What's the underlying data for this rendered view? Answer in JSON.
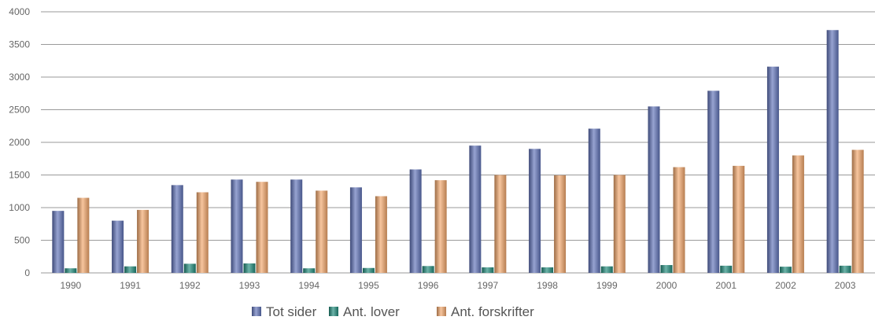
{
  "chart_data": {
    "type": "bar",
    "title": "",
    "xlabel": "",
    "ylabel": "",
    "categories": [
      "1990",
      "1991",
      "1992",
      "1993",
      "1994",
      "1995",
      "1996",
      "1997",
      "1998",
      "1999",
      "2000",
      "2001",
      "2002",
      "2003"
    ],
    "series": [
      {
        "name": "Tot sider",
        "color": "#5f72b8",
        "values": [
          950,
          800,
          1345,
          1430,
          1430,
          1310,
          1585,
          1950,
          1900,
          2210,
          2550,
          2790,
          3160,
          3720
        ]
      },
      {
        "name": "Ant. lover",
        "color": "#1f8a7a",
        "values": [
          70,
          100,
          140,
          145,
          70,
          75,
          105,
          85,
          85,
          100,
          120,
          110,
          95,
          110
        ]
      },
      {
        "name": "Ant. forskrifter",
        "color": "#f2a66a",
        "values": [
          1150,
          965,
          1235,
          1395,
          1260,
          1175,
          1420,
          1500,
          1495,
          1500,
          1620,
          1640,
          1800,
          1885
        ]
      }
    ],
    "ylim": [
      0,
      4000
    ],
    "y_ticks": [
      "0",
      "500",
      "1000",
      "1500",
      "2000",
      "2500",
      "3000",
      "3500",
      "4000"
    ],
    "grid": true,
    "legend_position": "bottom-center"
  }
}
